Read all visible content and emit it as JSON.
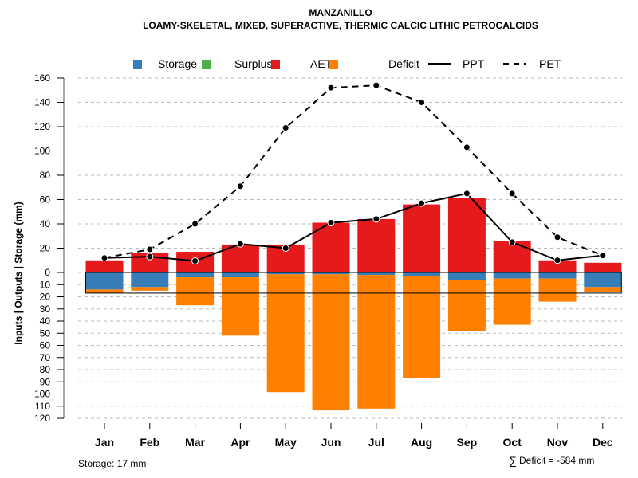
{
  "chart_data": {
    "type": "bar",
    "title": "MANZANILLO",
    "subtitle": "LOAMY-SKELETAL, MIXED, SUPERACTIVE, THERMIC CALCIC LITHIC PETROCALCIDS",
    "xlabel": "",
    "ylabel": "Inputs | Outputs | Storage    (mm)",
    "categories": [
      "Jan",
      "Feb",
      "Mar",
      "Apr",
      "May",
      "Jun",
      "Jul",
      "Aug",
      "Sep",
      "Oct",
      "Nov",
      "Dec"
    ],
    "ylim_upper": [
      0,
      160
    ],
    "ylim_lower": [
      0,
      120
    ],
    "yticks_upper": [
      "0",
      "20",
      "40",
      "60",
      "80",
      "100",
      "120",
      "140",
      "160"
    ],
    "yticks_lower": [
      "10",
      "20",
      "30",
      "40",
      "50",
      "60",
      "70",
      "80",
      "90",
      "100",
      "110",
      "120"
    ],
    "grid": true,
    "legend_position": "top",
    "legend": [
      {
        "label": "Storage",
        "kind": "box",
        "color": "#377EB8"
      },
      {
        "label": "Surplus",
        "kind": "box",
        "color": "#4DAF4A"
      },
      {
        "label": "AET",
        "kind": "box",
        "color": "#E41A1C"
      },
      {
        "label": "Deficit",
        "kind": "box",
        "color": "#FF7F00"
      },
      {
        "label": "PPT",
        "kind": "solid-line",
        "color": "#000000"
      },
      {
        "label": "PET",
        "kind": "dashed-line",
        "color": "#000000"
      }
    ],
    "series": [
      {
        "name": "AET",
        "direction": "up",
        "color": "#E41A1C",
        "values": [
          10,
          16,
          17,
          23,
          23,
          41,
          44,
          56,
          61,
          26,
          10,
          8
        ]
      },
      {
        "name": "Surplus",
        "direction": "up",
        "color": "#4DAF4A",
        "values": [
          0,
          0,
          0,
          0,
          0,
          0,
          0,
          0,
          0,
          0,
          0,
          0
        ]
      },
      {
        "name": "Storage",
        "direction": "down",
        "color": "#377EB8",
        "values": [
          14,
          12,
          4,
          4,
          1.5,
          1.5,
          2,
          3,
          6,
          5,
          5,
          12
        ]
      },
      {
        "name": "Deficit",
        "direction": "down",
        "color": "#FF7F00",
        "values": [
          3,
          3,
          23,
          48,
          97,
          112,
          110,
          84,
          42,
          38,
          19,
          4
        ]
      },
      {
        "name": "PPT",
        "type": "line",
        "style": "solid",
        "color": "#000000",
        "values": [
          12,
          13,
          9.5,
          23.5,
          20,
          41,
          44,
          57,
          65,
          25,
          10,
          14
        ]
      },
      {
        "name": "PET",
        "type": "line",
        "style": "dashed",
        "color": "#000000",
        "values": [
          12,
          19,
          40,
          71,
          119,
          152,
          154,
          140,
          103,
          65,
          29,
          14
        ]
      }
    ],
    "storage_capacity_mm": 17,
    "annotations": {
      "storage": "Storage: 17 mm",
      "deficit_sum": "Deficit = -584 mm",
      "deficit_symbol": "∑"
    }
  }
}
